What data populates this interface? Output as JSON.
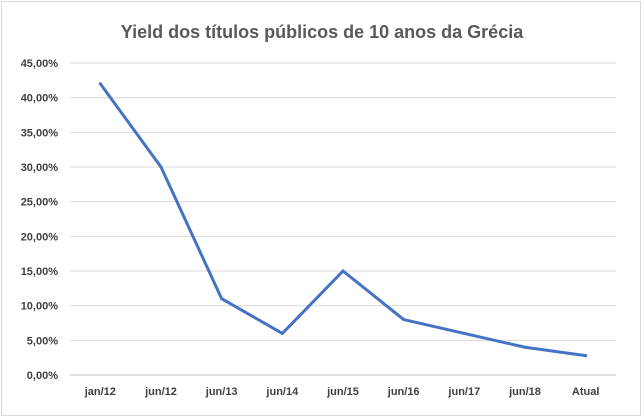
{
  "chart_data": {
    "type": "line",
    "title": "Yield dos títulos públicos de 10 anos da Grécia",
    "xlabel": "",
    "ylabel": "",
    "categories": [
      "jan/12",
      "jun/12",
      "jun/13",
      "jun/14",
      "jun/15",
      "jun/16",
      "jun/17",
      "jun/18",
      "Atual"
    ],
    "series": [
      {
        "values": [
          42.0,
          30.0,
          11.0,
          6.0,
          15.0,
          8.0,
          6.0,
          4.0,
          2.8
        ],
        "color": "#4472c4"
      }
    ],
    "ylim": [
      0,
      45
    ],
    "yticks": [
      0,
      5,
      10,
      15,
      20,
      25,
      30,
      35,
      40,
      45
    ],
    "ytick_labels": [
      "0,00%",
      "5,00%",
      "10,00%",
      "15,00%",
      "20,00%",
      "25,00%",
      "30,00%",
      "35,00%",
      "40,00%",
      "45,00%"
    ],
    "grid": true,
    "legend": "none"
  }
}
